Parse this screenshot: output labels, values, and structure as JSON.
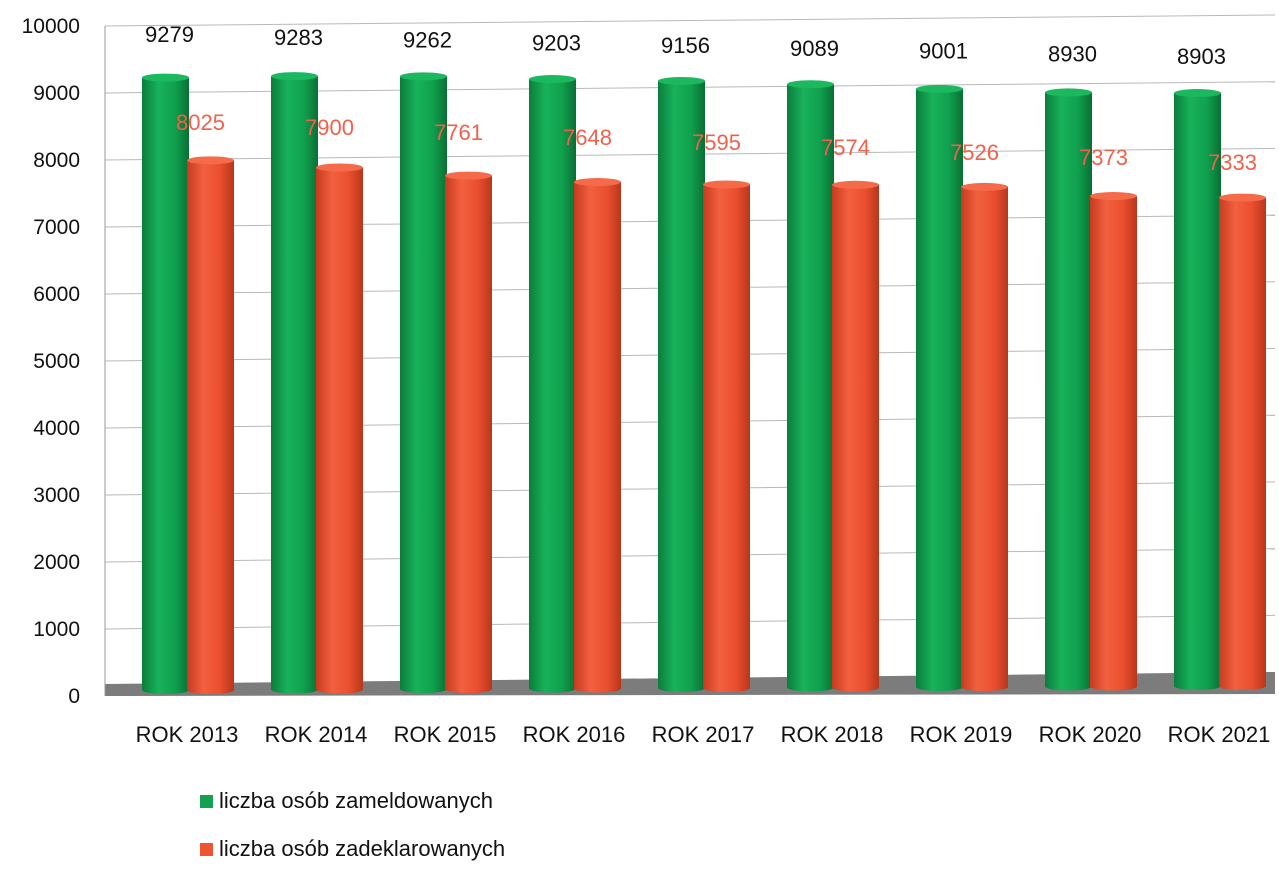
{
  "chart_data": {
    "type": "bar",
    "title": "",
    "xlabel": "",
    "ylabel": "",
    "ylim": [
      0,
      10000
    ],
    "yticks": [
      "0",
      "1000",
      "2000",
      "3000",
      "4000",
      "5000",
      "6000",
      "7000",
      "8000",
      "9000",
      "10000"
    ],
    "grid": true,
    "legend_position": "bottom",
    "categories": [
      "ROK 2013",
      "ROK 2014",
      "ROK 2015",
      "ROK 2016",
      "ROK 2017",
      "ROK 2018",
      "ROK 2019",
      "ROK 2020",
      "ROK 2021"
    ],
    "series": [
      {
        "name": "liczba osób zameldowanych",
        "color": "#12a150",
        "values": [
          9279,
          9283,
          9262,
          9203,
          9156,
          9089,
          9001,
          8930,
          8903
        ],
        "labels": [
          "9279",
          "9283",
          "9262",
          "9203",
          "9156",
          "9089",
          "9001",
          "8930",
          "8903"
        ]
      },
      {
        "name": "liczba osób zadeklarowanych",
        "color": "#ef5334",
        "values": [
          8025,
          7900,
          7761,
          7648,
          7595,
          7574,
          7526,
          7373,
          7333
        ],
        "labels": [
          "8025",
          "7900",
          "7761",
          "7648",
          "7595",
          "7574",
          "7526",
          "7373",
          "7333"
        ]
      }
    ]
  }
}
